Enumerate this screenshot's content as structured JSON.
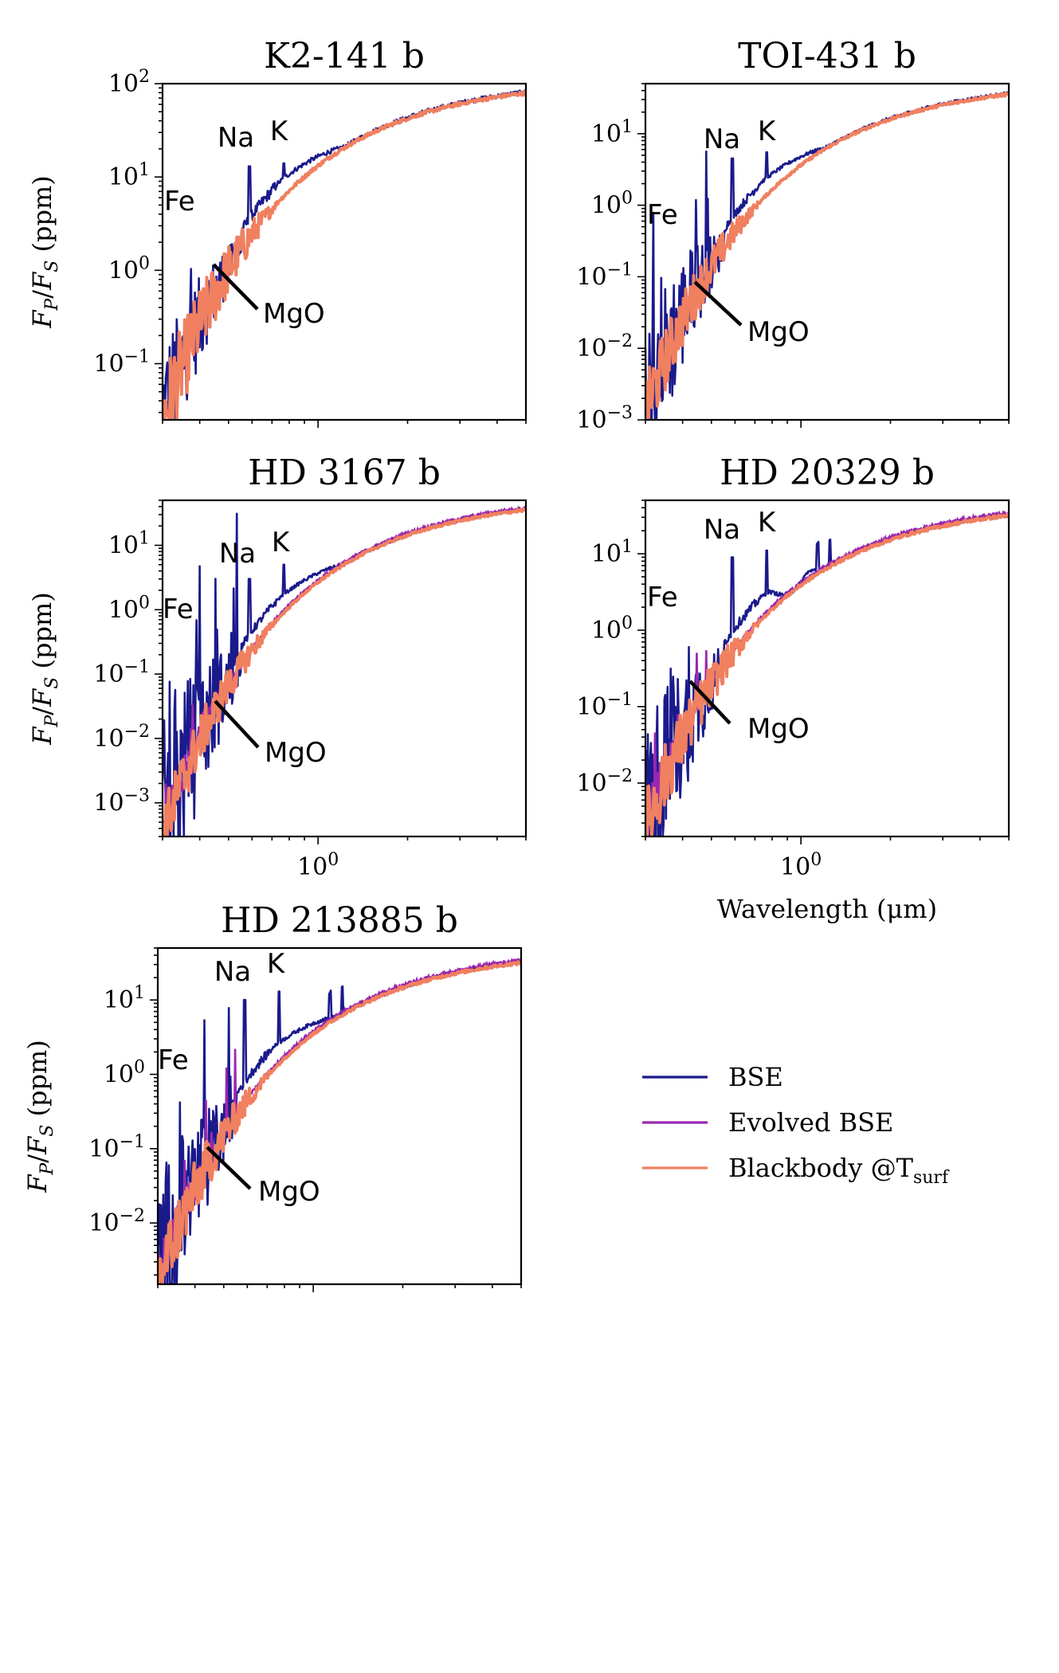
{
  "chart_data": {
    "type": "line",
    "xscale": "log",
    "yscale": "log",
    "xlabel": "Wavelength (μm)",
    "ylabel": "F_P/F_S (ppm)",
    "xlim": [
      0.3,
      5.0
    ],
    "x_tick_label": "10^0",
    "legend": {
      "location": "right of bottom-left panel",
      "entries": [
        {
          "name": "BSE",
          "color": "#1a1a8c",
          "text": "BSE"
        },
        {
          "name": "Evolved BSE",
          "color": "#9a27b0",
          "text": "Evolved BSE"
        },
        {
          "name": "Blackbody @T_surf",
          "color": "#f08060",
          "text": "Blackbody @T",
          "sub": "surf"
        }
      ]
    },
    "panels": [
      {
        "title": "K2-141 b",
        "ylim": [
          0.025,
          100
        ],
        "yticks": [
          {
            "exp": -1
          },
          {
            "exp": 0
          },
          {
            "exp": 1
          },
          {
            "exp": 2
          }
        ],
        "show_ylabel": true,
        "show_xlabel": false,
        "show_xticklabel": false,
        "bb_lo": -1.6,
        "bb_hi": 1.9,
        "bb_k": 1.42,
        "bse_offset": 0.2,
        "fe_amp": 0.7,
        "evolved": false,
        "na_peak": 13,
        "k_peak": 14,
        "extra_features": false,
        "bump": false,
        "annotations": {
          "Na": "Na",
          "K": "K",
          "Fe": "Fe",
          "MgO": "MgO"
        }
      },
      {
        "title": "TOI-431 b",
        "ylim": [
          0.001,
          50
        ],
        "yticks": [
          {
            "exp": -3
          },
          {
            "exp": -2
          },
          {
            "exp": -1
          },
          {
            "exp": 0
          },
          {
            "exp": 1
          }
        ],
        "show_ylabel": false,
        "show_xlabel": false,
        "show_xticklabel": false,
        "bb_lo": -2.9,
        "bb_hi": 1.55,
        "bb_k": 1.42,
        "bse_offset": 0.25,
        "fe_amp": 1.2,
        "evolved": false,
        "na_peak": 4.5,
        "k_peak": 5.5,
        "extra_features": false,
        "bump": false,
        "annotations": {
          "Na": "Na",
          "K": "K",
          "Fe": "Fe",
          "MgO": "MgO"
        }
      },
      {
        "title": "HD 3167 b",
        "ylim": [
          0.0003,
          50
        ],
        "yticks": [
          {
            "exp": -3
          },
          {
            "exp": -2
          },
          {
            "exp": -1
          },
          {
            "exp": 0
          },
          {
            "exp": 1
          }
        ],
        "show_ylabel": true,
        "show_xlabel": false,
        "show_xticklabel": true,
        "bb_lo": -3.5,
        "bb_hi": 1.55,
        "bb_k": 1.42,
        "bse_offset": 0.3,
        "fe_amp": 1.6,
        "evolved": true,
        "na_peak": 3,
        "k_peak": 5,
        "extra_features": false,
        "bump": false,
        "annotations": {
          "Na": "Na",
          "K": "K",
          "Fe": "Fe",
          "MgO": "MgO"
        }
      },
      {
        "title": "HD 20329 b",
        "ylim": [
          0.002,
          50
        ],
        "yticks": [
          {
            "exp": -2
          },
          {
            "exp": -1
          },
          {
            "exp": 0
          },
          {
            "exp": 1
          }
        ],
        "show_ylabel": false,
        "show_xlabel": true,
        "show_xticklabel": true,
        "bb_lo": -2.6,
        "bb_hi": 1.5,
        "bb_k": 1.42,
        "bse_offset": 0.3,
        "fe_amp": 1.3,
        "evolved": true,
        "na_peak": 9,
        "k_peak": 11,
        "extra_features": true,
        "bump": true,
        "annotations": {
          "Na": "Na",
          "K": "K",
          "Fe": "Fe",
          "MgO": "MgO"
        }
      },
      {
        "title": "HD 213885 b",
        "ylim": [
          0.0015,
          50
        ],
        "yticks": [
          {
            "exp": -2
          },
          {
            "exp": -1
          },
          {
            "exp": 0
          },
          {
            "exp": 1
          }
        ],
        "show_ylabel": true,
        "show_xlabel": false,
        "show_xticklabel": false,
        "bb_lo": -2.8,
        "bb_hi": 1.5,
        "bb_k": 1.42,
        "bse_offset": 0.3,
        "fe_amp": 1.3,
        "evolved": true,
        "na_peak": 10,
        "k_peak": 13,
        "extra_features": true,
        "bump": false,
        "annotations": {
          "Na": "Na",
          "K": "K",
          "Fe": "Fe",
          "MgO": "MgO"
        }
      }
    ]
  }
}
